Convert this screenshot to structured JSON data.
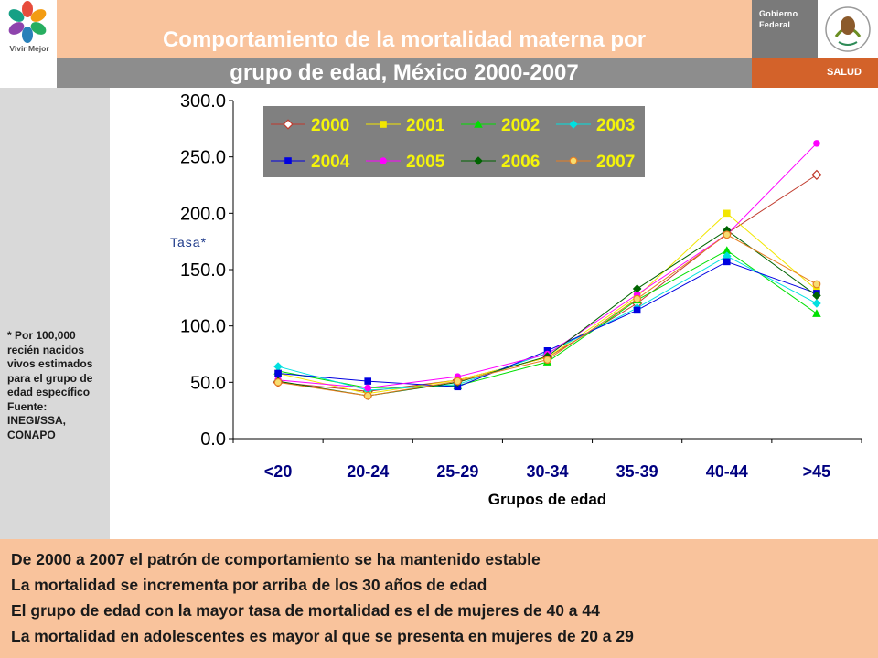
{
  "header": {
    "logo_text": "Vivir Mejor",
    "title_line1": "Comportamiento de la mortalidad materna por",
    "title_line2": "grupo de edad, México 2000-2007",
    "gov_line1": "Gobierno",
    "gov_line2": "Federal",
    "salud": "SALUD"
  },
  "note": {
    "lines": [
      "* Por 100,000",
      "recién nacidos",
      "vivos estimados",
      "para el grupo de",
      "edad específico",
      "Fuente:",
      "INEGI/SSA,",
      "CONAPO"
    ]
  },
  "bullets": [
    "De 2000 a 2007 el patrón de comportamiento se ha mantenido estable",
    "La mortalidad se incrementa por arriba de los 30 años de edad",
    "El grupo de edad con la mayor tasa de mortalidad es el de mujeres de 40 a 44",
    "La mortalidad en adolescentes es mayor al que se presenta en mujeres de 20 a 29"
  ],
  "colors": {
    "title_top": "#f9c39c",
    "title_bottom": "#8d8d8d",
    "salud": "#d3622a",
    "sidebar": "#d9d9d9",
    "legend_bg": "#808080"
  },
  "chart_data": {
    "type": "line",
    "title": "",
    "xlabel": "Grupos de edad",
    "ylabel": "Tasa*",
    "ylim": [
      0,
      300
    ],
    "yticks": [
      "0.0",
      "50.0",
      "100.0",
      "150.0",
      "200.0",
      "250.0",
      "300.0"
    ],
    "grid": false,
    "legend_position": "top",
    "categories": [
      "<20",
      "20-24",
      "25-29",
      "30-34",
      "35-39",
      "40-44",
      ">45"
    ],
    "series": [
      {
        "name": "2000",
        "color": "#c0392b",
        "marker": "diamond-open",
        "values": [
          50,
          42,
          52,
          72,
          120,
          182,
          234
        ]
      },
      {
        "name": "2001",
        "color": "#f2e600",
        "marker": "square",
        "values": [
          58,
          40,
          52,
          72,
          126,
          200,
          132
        ]
      },
      {
        "name": "2002",
        "color": "#00e000",
        "marker": "triangle",
        "values": [
          60,
          45,
          47,
          68,
          123,
          167,
          111
        ]
      },
      {
        "name": "2003",
        "color": "#00e0e0",
        "marker": "diamond",
        "values": [
          64,
          43,
          48,
          76,
          116,
          162,
          120
        ]
      },
      {
        "name": "2004",
        "color": "#0000e0",
        "marker": "square",
        "values": [
          58,
          51,
          46,
          78,
          114,
          157,
          129
        ]
      },
      {
        "name": "2005",
        "color": "#ff00ff",
        "marker": "circle",
        "values": [
          52,
          45,
          55,
          75,
          128,
          181,
          262
        ]
      },
      {
        "name": "2006",
        "color": "#006400",
        "marker": "diamond",
        "values": [
          51,
          38,
          50,
          73,
          133,
          185,
          127
        ]
      },
      {
        "name": "2007",
        "color": "#e67e22",
        "marker": "circle-open",
        "values": [
          50,
          38,
          51,
          70,
          124,
          181,
          137
        ]
      }
    ]
  }
}
